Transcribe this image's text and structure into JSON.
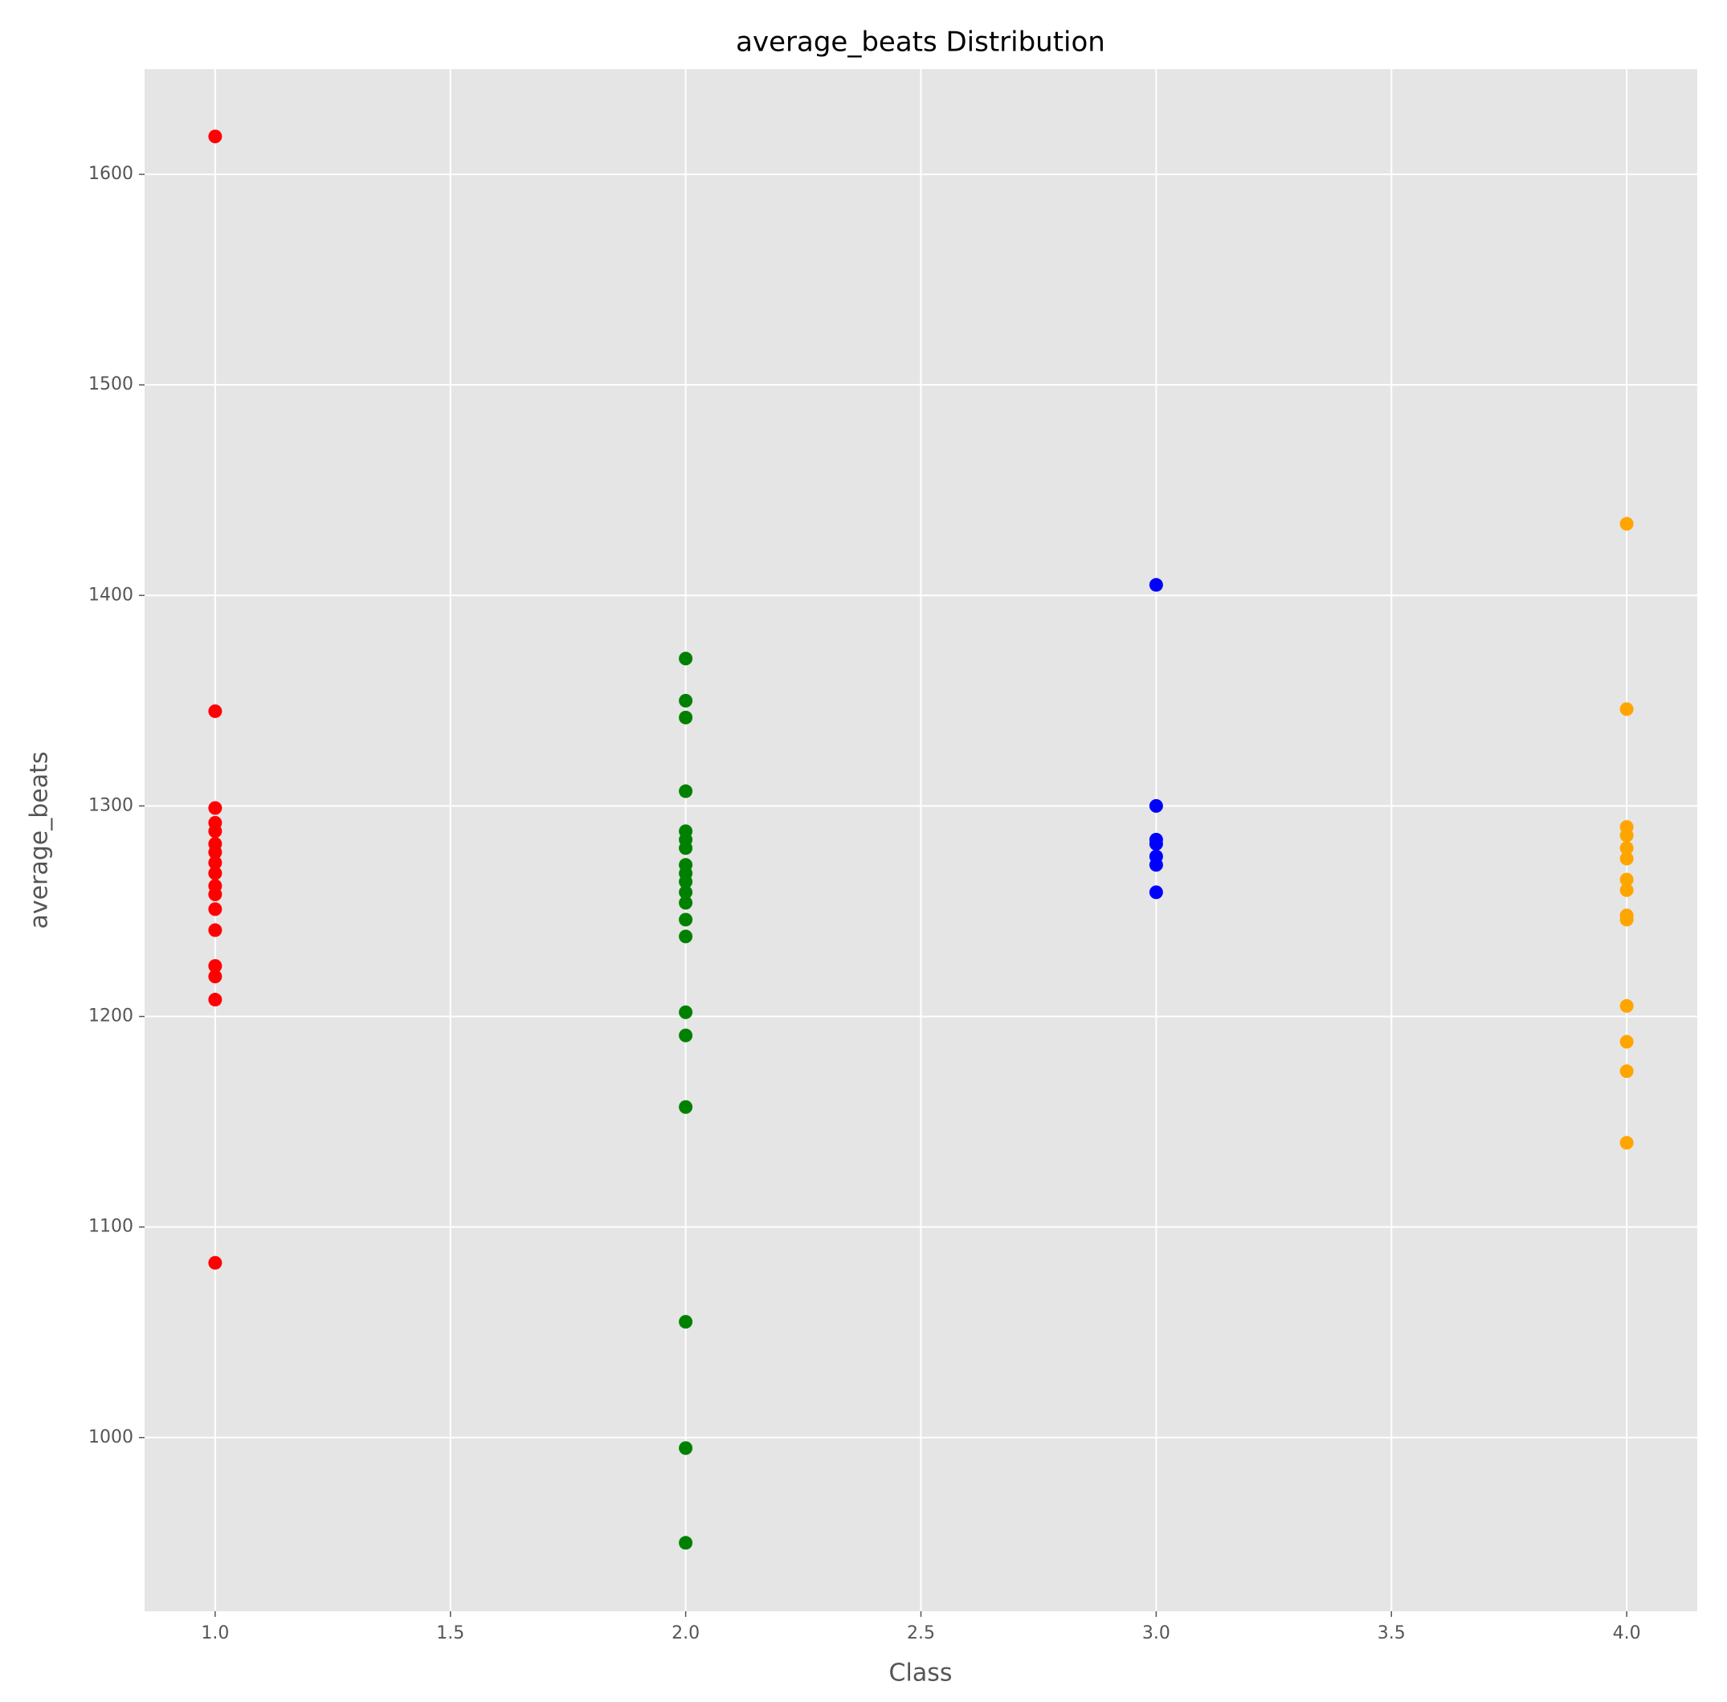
{
  "chart_data": {
    "type": "scatter",
    "title": "average_beats Distribution",
    "x_label": "Class",
    "y_label": "average_beats",
    "series": [
      {
        "color": "#ff0000",
        "x": [
          1,
          1,
          1,
          1,
          1,
          1,
          1,
          1,
          1,
          1,
          1,
          1,
          1,
          1,
          1,
          1,
          1
        ],
        "values": [
          1618,
          1345,
          1299,
          1292,
          1288,
          1282,
          1278,
          1273,
          1268,
          1262,
          1258,
          1251,
          1241,
          1224,
          1219,
          1208,
          1083
        ]
      },
      {
        "color": "#008000",
        "x": [
          2,
          2,
          2,
          2,
          2,
          2,
          2,
          2,
          2,
          2,
          2,
          2,
          2,
          2,
          2,
          2,
          2,
          2,
          2,
          2
        ],
        "values": [
          1370,
          1350,
          1342,
          1307,
          1288,
          1284,
          1280,
          1272,
          1268,
          1264,
          1259,
          1254,
          1246,
          1238,
          1202,
          1191,
          1157,
          1055,
          995,
          950
        ]
      },
      {
        "color": "#0000ff",
        "x": [
          3,
          3,
          3,
          3,
          3,
          3,
          3
        ],
        "values": [
          1405,
          1300,
          1284,
          1282,
          1276,
          1272,
          1259
        ]
      },
      {
        "color": "#ffa500",
        "x": [
          4,
          4,
          4,
          4,
          4,
          4,
          4,
          4,
          4,
          4,
          4,
          4,
          4,
          4
        ],
        "values": [
          1434,
          1346,
          1290,
          1286,
          1280,
          1275,
          1265,
          1260,
          1248,
          1246,
          1205,
          1188,
          1174,
          1140
        ]
      }
    ],
    "xlim": [
      0.85,
      4.15
    ],
    "xticks": [
      {
        "value": 1,
        "label": "1.0"
      },
      {
        "value": 1.5,
        "label": "1.5"
      },
      {
        "value": 2,
        "label": "2.0"
      },
      {
        "value": 2.5,
        "label": "2.5"
      },
      {
        "value": 3,
        "label": "3.0"
      },
      {
        "value": 3.5,
        "label": "3.5"
      },
      {
        "value": 4,
        "label": "4.0"
      }
    ],
    "ylim": [
      917.5,
      1650
    ],
    "yticks": [
      1000,
      1100,
      1200,
      1300,
      1400,
      1500,
      1600
    ],
    "grid": true
  }
}
